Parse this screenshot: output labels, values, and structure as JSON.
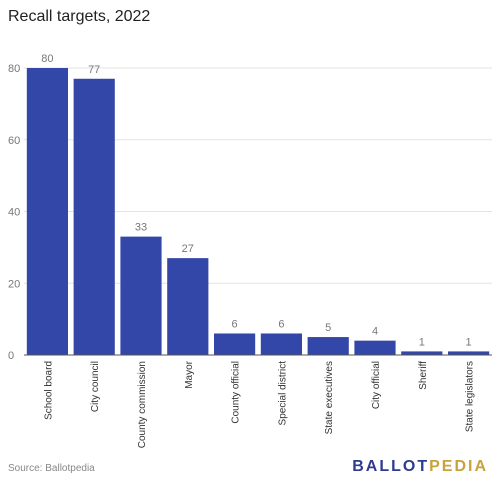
{
  "title": "Recall targets, 2022",
  "source": "Source: Ballotpedia",
  "logo": {
    "part1": "BALLOT",
    "part2": "PEDIA"
  },
  "colors": {
    "bar": "#3347a8",
    "grid": "#e3e3e3",
    "axis": "#555555",
    "label": "#777777"
  },
  "chart_data": {
    "type": "bar",
    "title": "Recall targets, 2022",
    "categories": [
      "School board",
      "City council",
      "County commission",
      "Mayor",
      "County official",
      "Special district",
      "State executives",
      "City official",
      "Sheriff",
      "State legislators"
    ],
    "values": [
      80,
      77,
      33,
      27,
      6,
      6,
      5,
      4,
      1,
      1
    ],
    "yticks": [
      0,
      20,
      40,
      60,
      80
    ],
    "ylim": [
      0,
      80
    ],
    "grid": true,
    "legend": "none"
  }
}
